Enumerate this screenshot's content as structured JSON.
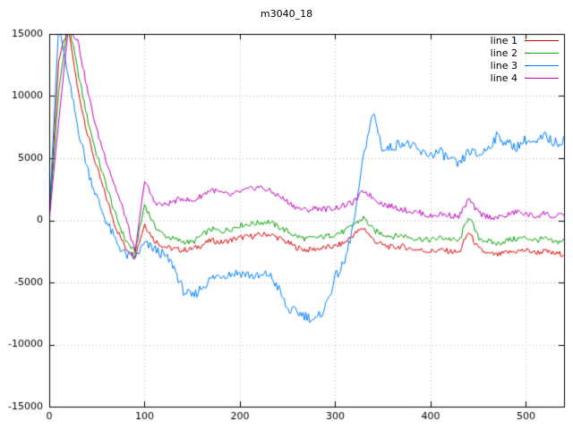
{
  "chart_data": {
    "type": "line",
    "title": "m3040_18",
    "xlabel": "",
    "ylabel": "",
    "xlim": [
      0,
      540
    ],
    "ylim": [
      -15000,
      15000
    ],
    "x_ticks": [
      0,
      100,
      200,
      300,
      400,
      500
    ],
    "y_ticks": [
      -15000,
      -10000,
      -5000,
      0,
      5000,
      10000,
      15000
    ],
    "grid": true,
    "grid_style": "dotted",
    "legend_position": "top-right",
    "x_step": 10,
    "x": [
      0,
      10,
      20,
      30,
      40,
      50,
      60,
      70,
      80,
      90,
      100,
      110,
      120,
      130,
      140,
      150,
      160,
      170,
      180,
      190,
      200,
      210,
      220,
      230,
      240,
      250,
      260,
      270,
      280,
      290,
      300,
      310,
      320,
      330,
      340,
      350,
      360,
      370,
      380,
      390,
      400,
      410,
      420,
      430,
      440,
      450,
      460,
      470,
      480,
      490,
      500,
      510,
      520,
      530,
      540
    ],
    "series": [
      {
        "name": "line 1",
        "color": "#dd0000",
        "values": [
          200,
          13000,
          15500,
          10500,
          7000,
          4200,
          1800,
          -600,
          -2200,
          -2900,
          -300,
          -1600,
          -2100,
          -2300,
          -2400,
          -2300,
          -2000,
          -1600,
          -1800,
          -1600,
          -1400,
          -1300,
          -1200,
          -1100,
          -1400,
          -1800,
          -2200,
          -2400,
          -2300,
          -2200,
          -2100,
          -1800,
          -1100,
          -600,
          -1600,
          -2000,
          -2200,
          -2100,
          -2300,
          -2400,
          -2500,
          -2400,
          -2500,
          -2600,
          -900,
          -2300,
          -2700,
          -2800,
          -2600,
          -2500,
          -2400,
          -2600,
          -2500,
          -2700,
          -2700
        ]
      },
      {
        "name": "line 2",
        "color": "#00a000",
        "values": [
          100,
          10500,
          16000,
          12000,
          8200,
          5200,
          2800,
          300,
          -1600,
          -2600,
          1300,
          -400,
          -1200,
          -1500,
          -1700,
          -1800,
          -1200,
          -700,
          -900,
          -700,
          -400,
          -300,
          -200,
          -100,
          -500,
          -900,
          -1300,
          -1500,
          -1400,
          -1300,
          -1100,
          -900,
          -300,
          200,
          -800,
          -1100,
          -1300,
          -1200,
          -1400,
          -1500,
          -1600,
          -1400,
          -1500,
          -1700,
          400,
          -1400,
          -1700,
          -1900,
          -1600,
          -1500,
          -1400,
          -1600,
          -1500,
          -1800,
          -1600
        ]
      },
      {
        "name": "line 3",
        "color": "#0080ff",
        "values": [
          300,
          15800,
          11500,
          7500,
          4200,
          1800,
          -100,
          -1700,
          -2800,
          -3000,
          -1900,
          -2300,
          -2800,
          -3600,
          -5600,
          -6200,
          -5400,
          -4700,
          -4400,
          -4300,
          -4200,
          -4400,
          -4600,
          -4300,
          -5400,
          -7200,
          -7400,
          -7700,
          -8100,
          -6900,
          -4600,
          -3400,
          0,
          5500,
          8700,
          5600,
          5900,
          6300,
          6000,
          5400,
          5300,
          5500,
          4900,
          4400,
          5600,
          5200,
          5800,
          6800,
          6200,
          5900,
          6500,
          6100,
          6800,
          6200,
          6500
        ]
      },
      {
        "name": "line 4",
        "color": "#bf00bf",
        "values": [
          100,
          8000,
          15500,
          14500,
          10500,
          7200,
          4800,
          2500,
          300,
          -2600,
          3200,
          1500,
          1200,
          1500,
          1800,
          1500,
          2000,
          2500,
          2200,
          2000,
          2300,
          2500,
          2700,
          2400,
          2000,
          1500,
          1000,
          800,
          1000,
          900,
          1000,
          1200,
          1500,
          2400,
          1800,
          1300,
          1100,
          900,
          700,
          600,
          300,
          500,
          400,
          300,
          1700,
          600,
          300,
          200,
          400,
          700,
          500,
          300,
          600,
          200,
          500
        ]
      }
    ]
  }
}
